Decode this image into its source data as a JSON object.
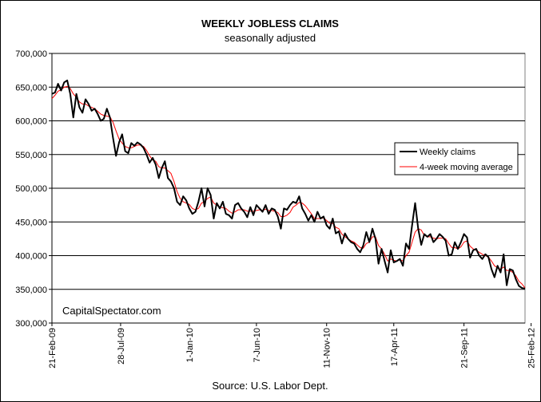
{
  "chart_data": {
    "type": "line",
    "title": "WEEKLY JOBLESS CLAIMS",
    "subtitle": "seasonally adjusted",
    "source": "Source: U.S. Labor Dept.",
    "watermark": "CapitalSpectator.com",
    "xlabel": "",
    "ylabel": "",
    "ylim": [
      300000,
      700000
    ],
    "grid": true,
    "legend_position": "right",
    "y_ticks": [
      300000,
      350000,
      400000,
      450000,
      500000,
      550000,
      600000,
      650000,
      700000
    ],
    "y_tick_labels": [
      "300,000",
      "350,000",
      "400,000",
      "450,000",
      "500,000",
      "550,000",
      "600,000",
      "650,000",
      "700,000"
    ],
    "x_ticks": [
      {
        "label": "21-Feb-09",
        "index": 0
      },
      {
        "label": "28-Jul-09",
        "index": 22.5
      },
      {
        "label": "1-Jan-10",
        "index": 45
      },
      {
        "label": "7-Jun-10",
        "index": 67
      },
      {
        "label": "11-Nov-10",
        "index": 90
      },
      {
        "label": "17-Apr-11",
        "index": 112
      },
      {
        "label": "21-Sep-11",
        "index": 135
      },
      {
        "label": "25-Feb-12",
        "index": 157
      }
    ],
    "series": [
      {
        "name": "Weekly claims",
        "color": "#000000",
        "values": [
          640000,
          642000,
          655000,
          645000,
          657000,
          660000,
          640000,
          605000,
          640000,
          620000,
          612000,
          632000,
          625000,
          615000,
          618000,
          610000,
          600000,
          603000,
          618000,
          605000,
          575000,
          548000,
          568000,
          580000,
          555000,
          552000,
          567000,
          563000,
          568000,
          565000,
          560000,
          550000,
          538000,
          545000,
          535000,
          515000,
          530000,
          540000,
          515000,
          510000,
          500000,
          480000,
          475000,
          488000,
          482000,
          470000,
          462000,
          465000,
          480000,
          500000,
          473000,
          500000,
          490000,
          455000,
          478000,
          470000,
          480000,
          462000,
          460000,
          455000,
          475000,
          478000,
          470000,
          465000,
          457000,
          472000,
          460000,
          475000,
          470000,
          465000,
          475000,
          462000,
          470000,
          468000,
          458000,
          440000,
          470000,
          468000,
          475000,
          480000,
          478000,
          488000,
          470000,
          462000,
          452000,
          460000,
          450000,
          465000,
          455000,
          458000,
          445000,
          440000,
          455000,
          433000,
          436000,
          418000,
          433000,
          425000,
          420000,
          418000,
          410000,
          405000,
          415000,
          435000,
          420000,
          440000,
          425000,
          388000,
          410000,
          392000,
          375000,
          408000,
          390000,
          392000,
          395000,
          385000,
          418000,
          410000,
          445000,
          478000,
          440000,
          416000,
          432000,
          428000,
          432000,
          420000,
          425000,
          432000,
          428000,
          422000,
          400000,
          402000,
          420000,
          410000,
          420000,
          432000,
          427000,
          397000,
          408000,
          410000,
          400000,
          395000,
          402000,
          398000,
          380000,
          368000,
          385000,
          375000,
          402000,
          356000,
          380000,
          378000,
          365000,
          355000,
          352000,
          351000
        ],
        "source_marker": "thick"
      },
      {
        "name": "4-week moving average",
        "color": "#ff0000",
        "values": [
          633000,
          638000,
          644000,
          646000,
          650000,
          651000,
          648000,
          640000,
          635000,
          628000,
          625000,
          625000,
          622000,
          620000,
          618000,
          614000,
          610000,
          608000,
          607000,
          606000,
          598000,
          585000,
          573000,
          567000,
          562000,
          560000,
          560000,
          562000,
          564000,
          564000,
          562000,
          556000,
          548000,
          542000,
          540000,
          532000,
          530000,
          530000,
          526000,
          522000,
          510000,
          495000,
          485000,
          480000,
          478000,
          476000,
          470000,
          468000,
          470000,
          478000,
          480000,
          485000,
          487000,
          478000,
          475000,
          472000,
          471000,
          470000,
          466000,
          463000,
          465000,
          468000,
          468000,
          468000,
          466000,
          466000,
          466000,
          467000,
          468000,
          467000,
          469000,
          467000,
          467000,
          466000,
          464000,
          458000,
          458000,
          460000,
          464000,
          472000,
          475000,
          479000,
          478000,
          474000,
          468000,
          462000,
          455000,
          455000,
          455000,
          456000,
          452000,
          448000,
          448000,
          442000,
          440000,
          432000,
          428000,
          425000,
          422000,
          420000,
          416000,
          412000,
          411000,
          418000,
          420000,
          428000,
          428000,
          415000,
          410000,
          402000,
          392000,
          395000,
          393000,
          392000,
          394000,
          392000,
          400000,
          405000,
          420000,
          435000,
          440000,
          438000,
          430000,
          428000,
          428000,
          426000,
          425000,
          426000,
          426000,
          425000,
          418000,
          412000,
          412000,
          410000,
          413000,
          420000,
          422000,
          414000,
          410000,
          408000,
          405000,
          402000,
          400000,
          398000,
          392000,
          385000,
          382000,
          380000,
          383000,
          378000,
          378000,
          375000,
          370000,
          362000,
          358000,
          352000
        ],
        "source_marker": "thin"
      }
    ]
  }
}
